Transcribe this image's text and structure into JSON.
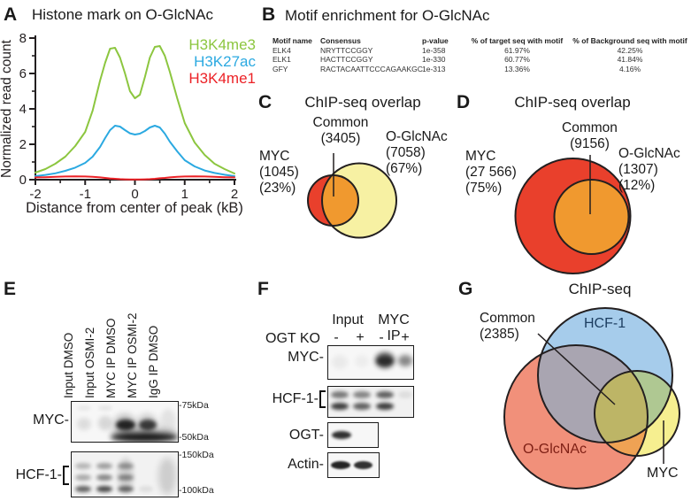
{
  "panels": {
    "A": {
      "label": "A",
      "title": "Histone mark on O-GlcNAc",
      "chart_data": {
        "type": "line",
        "title": "Histone mark on O-GlcNAc",
        "xlabel": "Distance from center of peak (kB)",
        "ylabel": "Normalized read count",
        "xlim": [
          -2,
          2
        ],
        "ylim": [
          0,
          8
        ],
        "xticks": [
          -2,
          -1,
          0,
          1,
          2
        ],
        "xticks_minor": [
          -1.5,
          -0.5,
          0.5,
          1.5
        ],
        "yticks": [
          0,
          2,
          4,
          6,
          8
        ],
        "yticks_minor": [
          1,
          3,
          5,
          7
        ],
        "grid": false,
        "legend_position": "top-right",
        "x": [
          -2,
          -1.8,
          -1.6,
          -1.4,
          -1.2,
          -1.0,
          -0.85,
          -0.7,
          -0.6,
          -0.5,
          -0.4,
          -0.3,
          -0.2,
          -0.1,
          0,
          0.1,
          0.2,
          0.3,
          0.4,
          0.5,
          0.6,
          0.7,
          0.85,
          1.0,
          1.2,
          1.4,
          1.6,
          1.8,
          2.0
        ],
        "series": [
          {
            "name": "H3K4me3",
            "color": "#8CC63F",
            "values": [
              0.4,
              0.6,
              0.9,
              1.3,
              1.9,
              2.7,
              3.9,
              5.6,
              6.6,
              7.4,
              7.45,
              6.9,
              6.0,
              5.0,
              4.6,
              4.8,
              5.8,
              6.9,
              7.5,
              7.55,
              7.0,
              6.1,
              4.6,
              3.2,
              2.1,
              1.4,
              0.9,
              0.6,
              0.35
            ]
          },
          {
            "name": "H3K27ac",
            "color": "#2BA9E1",
            "values": [
              0.2,
              0.27,
              0.36,
              0.5,
              0.68,
              0.95,
              1.3,
              1.85,
              2.35,
              2.8,
              3.05,
              3.0,
              2.8,
              2.62,
              2.55,
              2.6,
              2.75,
              2.95,
              3.05,
              2.95,
              2.6,
              2.15,
              1.6,
              1.1,
              0.75,
              0.52,
              0.38,
              0.28,
              0.2
            ]
          },
          {
            "name": "H3K4me1",
            "color": "#EC2227",
            "values": [
              0.13,
              0.14,
              0.16,
              0.18,
              0.19,
              0.18,
              0.16,
              0.13,
              0.1,
              0.07,
              0.05,
              0.03,
              0.02,
              0.01,
              0.01,
              0.01,
              0.02,
              0.03,
              0.05,
              0.08,
              0.1,
              0.13,
              0.16,
              0.18,
              0.19,
              0.18,
              0.16,
              0.14,
              0.13
            ]
          }
        ]
      }
    },
    "B": {
      "label": "B",
      "title": "Motif enrichment for O-GlcNAc",
      "table": {
        "columns": [
          "Motif name",
          "Consensus",
          "p-value",
          "% of target seq with motif",
          "% of Background seq with motif"
        ],
        "rows": [
          [
            "ELK4",
            "NRYTTCCGGY",
            "1e-358",
            "61.97%",
            "42.25%"
          ],
          [
            "ELK1",
            "HACTTCCGGY",
            "1e-330",
            "60.77%",
            "41.84%"
          ],
          [
            "GFY",
            "RACTACAATTCCCAGAAKGC",
            "1e-313",
            "13.36%",
            "4.16%"
          ]
        ]
      }
    },
    "C": {
      "label": "C",
      "title": "ChIP-seq overlap",
      "venn": {
        "myc": {
          "name": "MYC",
          "count": "(1045)",
          "pct": "(23%)",
          "color": "#E9402C"
        },
        "oglcnac": {
          "name": "O-GlcNAc",
          "count": "(7058)",
          "pct": "(67%)",
          "color": "#F7F1A3"
        },
        "common": {
          "name": "Common",
          "count": "(3405)",
          "color": "#F0992F"
        }
      }
    },
    "D": {
      "label": "D",
      "title": "ChIP-seq overlap",
      "venn": {
        "myc": {
          "name": "MYC",
          "count": "(27 566)",
          "pct": "(75%)",
          "color": "#E9402C"
        },
        "oglcnac": {
          "name": "O-GlcNAc",
          "count": "(1307)",
          "pct": "(12%)",
          "color": "#F7F1A3"
        },
        "common": {
          "name": "Common",
          "count": "(9156)",
          "color": "#F0992F"
        }
      }
    },
    "E": {
      "label": "E",
      "lanes": [
        "Input DMSO",
        "Input OSMI-2",
        "MYC IP DMSO",
        "MYC IP OSMI-2",
        "IgG IP DMSO"
      ],
      "rows": [
        {
          "name": "MYC-"
        },
        {
          "name": "HCF-1-"
        }
      ],
      "markers": [
        "-75kDa",
        "-50kDa",
        "-150kDa",
        "-100kDa"
      ]
    },
    "F": {
      "label": "F",
      "groups": [
        "Input",
        "MYC IP"
      ],
      "ko_label": "OGT KO",
      "ko": [
        "-",
        "+",
        "-",
        "+"
      ],
      "rows": [
        "MYC-",
        "HCF-1-",
        "OGT-",
        "Actin-"
      ]
    },
    "G": {
      "label": "G",
      "title": "ChIP-seq",
      "venn": {
        "hcf1": {
          "name": "HCF-1",
          "color": "#A6CCEB",
          "text_color": "#1B3C5F"
        },
        "oglcnac": {
          "name": "O-GlcNAc",
          "color": "#F1907A",
          "text_color": "#7E1F14"
        },
        "myc": {
          "name": "MYC",
          "color": "#F6EF90",
          "text_color": "#1a1a1a"
        },
        "common": {
          "name": "Common",
          "count": "(2385)"
        },
        "overlap_colors": {
          "hcf1_oglcnac": "#A9A5B1",
          "hcf1_myc": "#AFC892",
          "oglcnac_myc": "#EFA254",
          "triple": "#BDB566"
        }
      }
    }
  }
}
